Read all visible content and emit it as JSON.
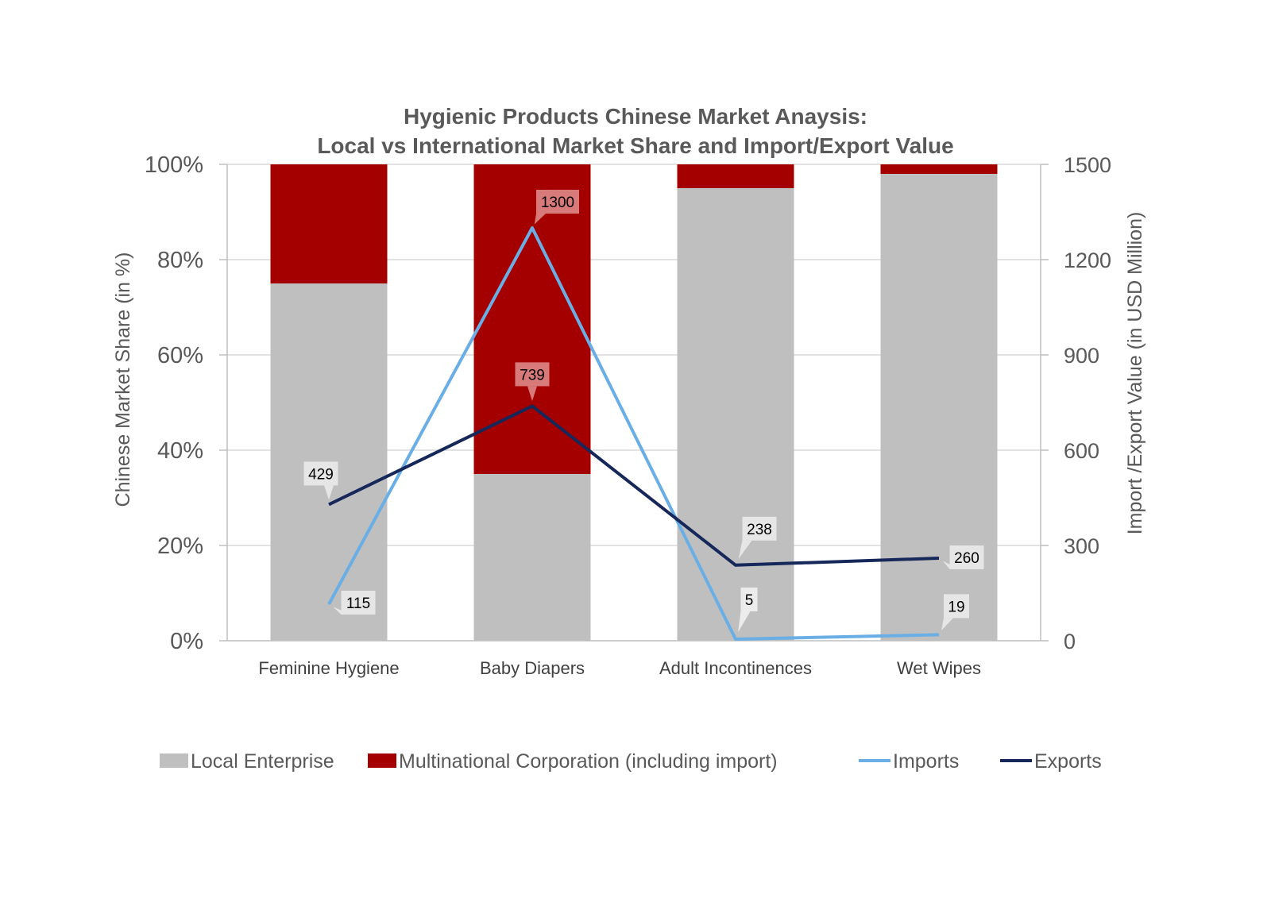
{
  "chart_data": {
    "type": "bar",
    "title": [
      "Hygienic Products Chinese Market Anaysis:",
      "Local vs International Market Share and Import/Export Value"
    ],
    "categories": [
      "Feminine Hygiene",
      "Baby Diapers",
      "Adult Incontinences",
      "Wet Wipes"
    ],
    "stacked": true,
    "series": [
      {
        "name": "Local Enterprise",
        "kind": "bar",
        "axis": "left",
        "color": "#bfbfbf",
        "values": [
          75,
          35,
          95,
          98
        ]
      },
      {
        "name": "Multinational Corporation (including import)",
        "kind": "bar",
        "axis": "left",
        "color": "#a50000",
        "values": [
          25,
          65,
          5,
          2
        ]
      },
      {
        "name": "Imports",
        "kind": "line",
        "axis": "right",
        "color": "#6aaee6",
        "values": [
          115,
          1300,
          5,
          19
        ]
      },
      {
        "name": "Exports",
        "kind": "line",
        "axis": "right",
        "color": "#16275a",
        "values": [
          429,
          739,
          238,
          260
        ]
      }
    ],
    "y_left": {
      "label": "Chinese Market Share (in %)",
      "ylim": [
        0,
        100
      ],
      "ticks": [
        "0%",
        "20%",
        "40%",
        "60%",
        "80%",
        "100%"
      ]
    },
    "y_right": {
      "label": "Import /Export Value (in USD Million)",
      "ylim": [
        0,
        1500
      ],
      "ticks": [
        "0",
        "300",
        "600",
        "900",
        "1200",
        "1500"
      ]
    },
    "data_labels": {
      "Imports": [
        "115",
        "1300",
        "5",
        "19"
      ],
      "Exports": [
        "429",
        "739",
        "238",
        "260"
      ]
    },
    "grid": true,
    "legend": "bottom"
  }
}
